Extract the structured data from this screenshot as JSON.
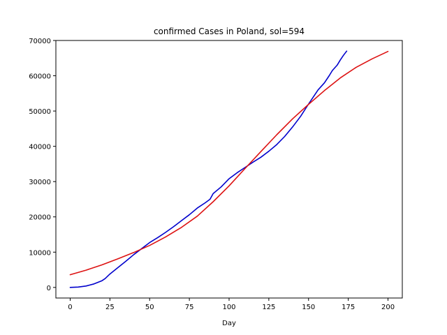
{
  "chart_data": {
    "type": "line",
    "title": "confirmed Cases in Poland, sol=594",
    "xlabel": "Day",
    "ylabel": "",
    "xlim": [
      -9,
      209
    ],
    "ylim": [
      -3000,
      70000
    ],
    "xticks": [
      0,
      25,
      50,
      75,
      100,
      125,
      150,
      175,
      200
    ],
    "yticks": [
      0,
      10000,
      20000,
      30000,
      40000,
      50000,
      60000,
      70000
    ],
    "grid": false,
    "series": [
      {
        "color": "#0000cc",
        "x": [
          0,
          5,
          10,
          15,
          20,
          22,
          25,
          30,
          35,
          40,
          45,
          50,
          55,
          60,
          65,
          70,
          75,
          80,
          85,
          88,
          90,
          95,
          100,
          105,
          110,
          115,
          120,
          125,
          130,
          135,
          140,
          145,
          150,
          153,
          156,
          160,
          163,
          165,
          168,
          170,
          172,
          174
        ],
        "y": [
          0,
          100,
          400,
          1000,
          1900,
          2500,
          3800,
          5600,
          7400,
          9300,
          11000,
          12700,
          14100,
          15600,
          17200,
          18900,
          20600,
          22500,
          24000,
          25000,
          26600,
          28500,
          30800,
          32500,
          34000,
          35500,
          36900,
          38600,
          40500,
          42800,
          45500,
          48500,
          52000,
          54000,
          56000,
          58000,
          60000,
          61500,
          63000,
          64500,
          65800,
          67000
        ]
      },
      {
        "color": "#dd1111",
        "x": [
          0,
          10,
          20,
          30,
          40,
          50,
          60,
          70,
          80,
          90,
          100,
          110,
          120,
          130,
          140,
          150,
          160,
          170,
          180,
          190,
          200
        ],
        "y": [
          3600,
          4900,
          6400,
          8100,
          9900,
          11900,
          14300,
          17000,
          20200,
          24300,
          28800,
          33700,
          38500,
          43300,
          47800,
          51900,
          55800,
          59400,
          62400,
          64800,
          66900
        ]
      }
    ]
  }
}
